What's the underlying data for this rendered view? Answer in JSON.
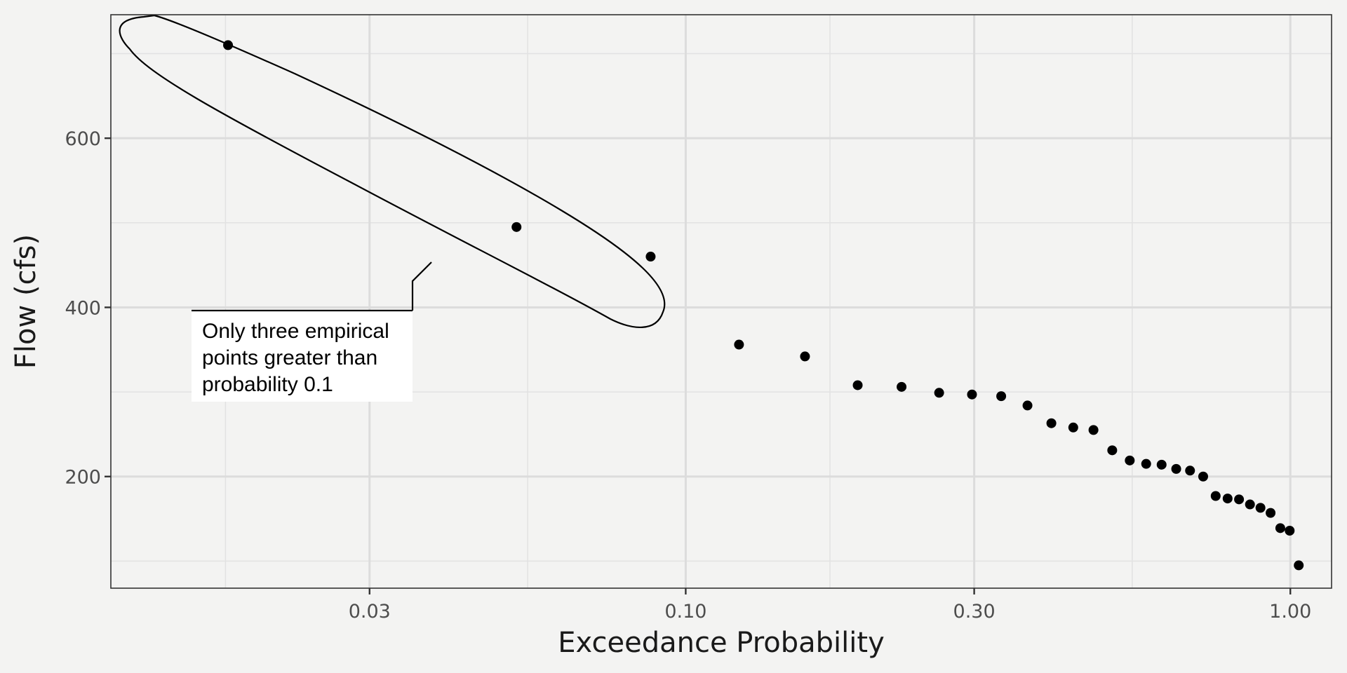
{
  "chart_data": {
    "type": "scatter",
    "title": "",
    "xlabel": "Exceedance Probability",
    "ylabel": "Flow (cfs)",
    "x_scale": "log",
    "xlim": [
      0.0112,
      1.17
    ],
    "ylim": [
      68,
      746
    ],
    "x_ticks": [
      {
        "value": 0.03,
        "label": "0.03"
      },
      {
        "value": 0.1,
        "label": "0.10"
      },
      {
        "value": 0.3,
        "label": "0.30"
      },
      {
        "value": 1.0,
        "label": "1.00"
      }
    ],
    "x_minor_ticks": [
      0.01733,
      0.05477,
      0.1732,
      0.5477
    ],
    "y_ticks": [
      {
        "value": 200,
        "label": "200"
      },
      {
        "value": 400,
        "label": "400"
      },
      {
        "value": 600,
        "label": "600"
      }
    ],
    "y_minor_ticks": [
      100,
      300,
      500,
      700
    ],
    "grid": true,
    "point_color": "#000000",
    "points": [
      {
        "x": 0.0175,
        "y": 710
      },
      {
        "x": 0.0525,
        "y": 495
      },
      {
        "x": 0.0875,
        "y": 460
      },
      {
        "x": 0.1225,
        "y": 356
      },
      {
        "x": 0.1575,
        "y": 342
      },
      {
        "x": 0.1925,
        "y": 308
      },
      {
        "x": 0.2275,
        "y": 306
      },
      {
        "x": 0.2625,
        "y": 299
      },
      {
        "x": 0.2975,
        "y": 297
      },
      {
        "x": 0.3325,
        "y": 295
      },
      {
        "x": 0.3675,
        "y": 284
      },
      {
        "x": 0.4025,
        "y": 263
      },
      {
        "x": 0.4375,
        "y": 258
      },
      {
        "x": 0.4725,
        "y": 255
      },
      {
        "x": 0.5075,
        "y": 231
      },
      {
        "x": 0.5425,
        "y": 219
      },
      {
        "x": 0.5775,
        "y": 215
      },
      {
        "x": 0.6125,
        "y": 214
      },
      {
        "x": 0.6475,
        "y": 209
      },
      {
        "x": 0.6825,
        "y": 207
      },
      {
        "x": 0.7175,
        "y": 200
      },
      {
        "x": 0.7525,
        "y": 177
      },
      {
        "x": 0.7875,
        "y": 174
      },
      {
        "x": 0.8225,
        "y": 173
      },
      {
        "x": 0.8575,
        "y": 167
      },
      {
        "x": 0.8925,
        "y": 163
      },
      {
        "x": 0.9275,
        "y": 157
      },
      {
        "x": 0.9625,
        "y": 139
      },
      {
        "x": 0.9975,
        "y": 136
      },
      {
        "x": 1.0325,
        "y": 95
      }
    ],
    "annotation": {
      "lines": [
        "Only three empirical",
        "points greater than",
        "probability 0.1"
      ],
      "target": "first three points (ellipse)"
    }
  }
}
